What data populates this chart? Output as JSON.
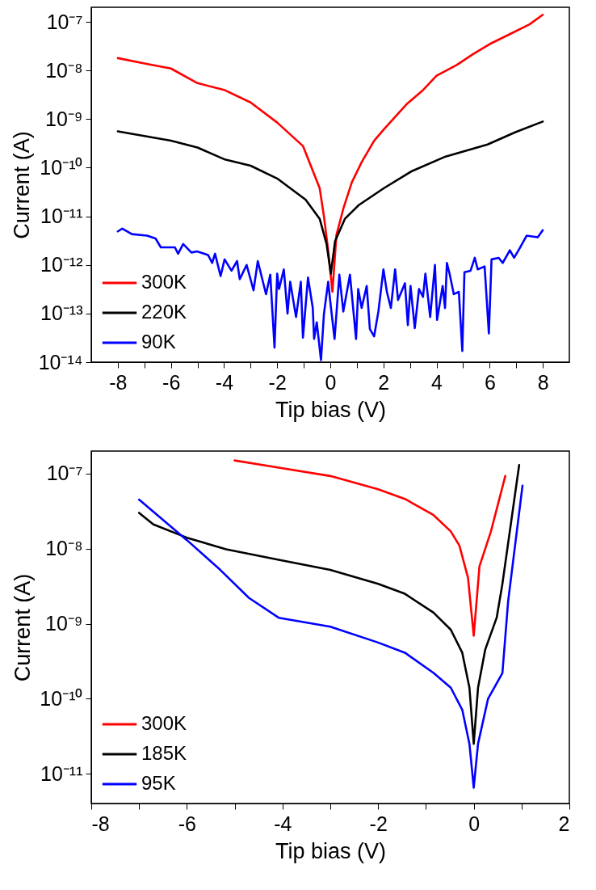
{
  "chart_data": [
    {
      "type": "line",
      "xlabel": "Tip bias (V)",
      "ylabel": "Current (A)",
      "log": "y",
      "grid": false,
      "legend": "bottom left",
      "xlim": [
        -9,
        9
      ],
      "ylim": [
        1e-14,
        2e-07
      ],
      "xticks": [
        -8,
        {
          "value": -7,
          "label": null
        },
        -6,
        {
          "value": -5,
          "label": null
        },
        -4,
        {
          "value": -3,
          "label": null
        },
        -2,
        {
          "value": -1,
          "label": null
        },
        0,
        {
          "value": 1,
          "label": null
        },
        2,
        {
          "value": 3,
          "label": null
        },
        4,
        {
          "value": 5,
          "label": null
        },
        6,
        {
          "value": 7,
          "label": null
        },
        8
      ],
      "yticks": [
        {
          "value": 1e-14,
          "label": "10⁻¹⁴"
        },
        {
          "value": 1e-13,
          "label": "10⁻¹³"
        },
        {
          "value": 1e-12,
          "label": "10⁻¹²"
        },
        {
          "value": 1e-11,
          "label": "10⁻¹¹"
        },
        {
          "value": 1e-10,
          "label": "10⁻¹⁰"
        },
        {
          "value": 1e-09,
          "label": "10⁻⁹"
        },
        {
          "value": 1e-08,
          "label": "10⁻⁸"
        },
        {
          "value": 1e-07,
          "label": "10⁻⁷"
        }
      ],
      "series": [
        {
          "name": "300K",
          "color": "#ff0000",
          "x": [
            -8,
            -7,
            -6,
            -5,
            -4,
            -3,
            -2,
            -1.03,
            -0.4,
            -0.24,
            -0.08,
            0.08,
            0.23,
            0.5,
            0.81,
            1.18,
            1.65,
            2.02,
            2.86,
            3.5,
            4.0,
            4.76,
            5.39,
            6.0,
            6.76,
            7.5,
            8.0
          ],
          "values": [
            1.8e-08,
            1.4e-08,
            1.1e-08,
            5.5e-09,
            4e-09,
            2.2e-09,
            8.5e-10,
            2.8e-10,
            3.8e-11,
            1e-11,
            2e-12,
            2.8e-13,
            4.1e-12,
            1.5e-11,
            5e-11,
            1.3e-10,
            3.6e-10,
            6.2e-10,
            2e-09,
            4e-09,
            7.8e-09,
            1.3e-08,
            2.2e-08,
            3.5e-08,
            5.6e-08,
            8.9e-08,
            1.4e-07
          ]
        },
        {
          "name": "220K",
          "color": "#000000",
          "x": [
            -8,
            -6,
            -5,
            -4,
            -3,
            -2,
            -0.93,
            -0.4,
            -0.14,
            0.02,
            0.18,
            0.55,
            1.07,
            2.02,
            3.07,
            4.34,
            5.92,
            6.97,
            8
          ],
          "values": [
            5.6e-10,
            3.6e-10,
            2.6e-10,
            1.5e-10,
            1.1e-10,
            6e-11,
            2.2e-11,
            8.9e-12,
            2.7e-12,
            6.6e-13,
            3.1e-12,
            8.9e-12,
            1.7e-11,
            3.8e-11,
            8.5e-11,
            1.7e-10,
            3e-10,
            5.4e-10,
            8.9e-10
          ]
        },
        {
          "name": "90K",
          "color": "#0000ff",
          "x": [
            -8,
            -7.83,
            -7.47,
            -6.9,
            -6.58,
            -6.38,
            -5.85,
            -5.73,
            -5.54,
            -5.23,
            -5.02,
            -4.6,
            -4.45,
            -4.34,
            -4.13,
            -3.98,
            -3.72,
            -3.51,
            -3.41,
            -3.15,
            -2.89,
            -2.73,
            -2.42,
            -2.26,
            -2.1,
            -2.0,
            -1.93,
            -1.75,
            -1.61,
            -1.51,
            -1.29,
            -1.11,
            -1.03,
            -0.84,
            -0.66,
            -0.61,
            -0.51,
            -0.35,
            -0.24,
            -0.08,
            0.02,
            0.16,
            0.34,
            0.49,
            0.74,
            0.97,
            1.05,
            1.18,
            1.37,
            1.49,
            1.65,
            1.81,
            2.0,
            2.13,
            2.28,
            2.44,
            2.55,
            2.81,
            2.92,
            3.02,
            3.18,
            3.34,
            3.49,
            3.58,
            3.76,
            3.94,
            4.02,
            4.23,
            4.32,
            4.39,
            4.49,
            4.65,
            4.84,
            4.97,
            5.05,
            5.28,
            5.44,
            5.55,
            5.81,
            5.97,
            6.07,
            6.34,
            6.49,
            6.76,
            6.92,
            7.13,
            7.39,
            7.81,
            8.0
          ],
          "values": [
            4.9e-12,
            5.6e-12,
            4.3e-12,
            4e-12,
            3.5e-12,
            2.3e-12,
            2.3e-12,
            1.7e-12,
            2.7e-12,
            1.8e-12,
            1.9e-12,
            1.6e-12,
            1.1e-12,
            1.7e-12,
            5.9e-13,
            1.3e-12,
            7.6e-13,
            1.2e-12,
            5.1e-13,
            1e-12,
            3e-13,
            1.2e-12,
            2.5e-13,
            6.3e-13,
            2e-14,
            6.6e-13,
            3.2e-13,
            8.1e-13,
            1e-13,
            4.5e-13,
            8.5e-14,
            4.5e-13,
            3.2e-14,
            5.5e-13,
            1.3e-13,
            3e-14,
            6.6e-14,
            1.1e-14,
            9.8e-14,
            4.5e-13,
            1.4e-13,
            3e-14,
            6.3e-13,
            1.1e-13,
            6.3e-13,
            3e-14,
            3.2e-13,
            1.3e-13,
            3.7e-13,
            4.8e-14,
            3.4e-14,
            1.1e-13,
            8.1e-13,
            2.8e-13,
            1.3e-13,
            8.1e-13,
            1.9e-13,
            4.2e-13,
            5.8e-14,
            3.7e-13,
            5e-14,
            3.2e-13,
            2.2e-13,
            6.6e-13,
            8.5e-14,
            1e-12,
            7.4e-14,
            3.7e-13,
            1.3e-13,
            1.1e-12,
            6.6e-13,
            2.5e-13,
            2.8e-13,
            1.7e-14,
            7.1e-13,
            7.6e-13,
            1.4e-12,
            8.1e-13,
            9.3e-13,
            3.9e-14,
            1.3e-12,
            1.4e-12,
            1.1e-12,
            2e-12,
            1.4e-12,
            2.2e-12,
            4e-12,
            3.7e-12,
            5.2e-12
          ]
        }
      ]
    },
    {
      "type": "line",
      "xlabel": "Tip bias (V)",
      "ylabel": "Current (A)",
      "log": "y",
      "grid": false,
      "legend": "bottom left",
      "xlim": [
        -8,
        2
      ],
      "ylim": [
        4e-12,
        2e-07
      ],
      "xticks": [
        -8,
        {
          "value": -7,
          "label": null
        },
        -6,
        {
          "value": -5,
          "label": null
        },
        -4,
        {
          "value": -3,
          "label": null
        },
        -2,
        {
          "value": -1,
          "label": null
        },
        0,
        {
          "value": 1,
          "label": null
        },
        2
      ],
      "yticks": [
        {
          "value": 1e-11,
          "label": "10⁻¹¹"
        },
        {
          "value": 1e-10,
          "label": "10⁻¹⁰"
        },
        {
          "value": 1e-09,
          "label": "10⁻⁹"
        },
        {
          "value": 1e-08,
          "label": "10⁻⁸"
        },
        {
          "value": 1e-07,
          "label": "10⁻⁷"
        }
      ],
      "series": [
        {
          "name": "300K",
          "color": "#ff0000",
          "x": [
            -5.0,
            -4.08,
            -3.0,
            -2.0,
            -1.44,
            -0.84,
            -0.48,
            -0.3,
            -0.12,
            0,
            0.12,
            0.36,
            0.66
          ],
          "values": [
            1.5e-07,
            1.2e-07,
            9.3e-08,
            6.2e-08,
            4.6e-08,
            2.8e-08,
            1.7e-08,
            1.1e-08,
            4.1e-09,
            6.9e-10,
            5.8e-09,
            1.7e-08,
            9.3e-08
          ]
        },
        {
          "name": "185K",
          "color": "#000000",
          "x": [
            -7.0,
            -6.7,
            -6,
            -5.18,
            -4.08,
            -3.0,
            -2,
            -1.44,
            -0.84,
            -0.48,
            -0.24,
            -0.09,
            0,
            0.09,
            0.24,
            0.48,
            0.6,
            0.95
          ],
          "values": [
            3e-08,
            2.1e-08,
            1.4e-08,
            9.8e-09,
            7.1e-09,
            5.2e-09,
            3.4e-09,
            2.5e-09,
            1.4e-09,
            8.3e-10,
            4.1e-10,
            1.4e-10,
            2.5e-11,
            1.4e-10,
            4.5e-10,
            1.2e-09,
            3.4e-09,
            1.3e-07
          ]
        },
        {
          "name": "95K",
          "color": "#0000ff",
          "x": [
            -7.0,
            -6,
            -5.3,
            -4.7,
            -4.08,
            -3,
            -2,
            -1.44,
            -0.84,
            -0.48,
            -0.24,
            -0.09,
            0,
            0.09,
            0.3,
            0.6,
            0.72,
            1.02
          ],
          "values": [
            4.5e-08,
            1.3e-08,
            5.2e-09,
            2.2e-09,
            1.2e-09,
            9.1e-10,
            5.6e-10,
            4.1e-10,
            2.2e-10,
            1.4e-10,
            7.1e-11,
            2.5e-11,
            6.5e-12,
            2.5e-11,
            1e-10,
            2.2e-10,
            2e-09,
            6.9e-08
          ]
        }
      ]
    }
  ]
}
